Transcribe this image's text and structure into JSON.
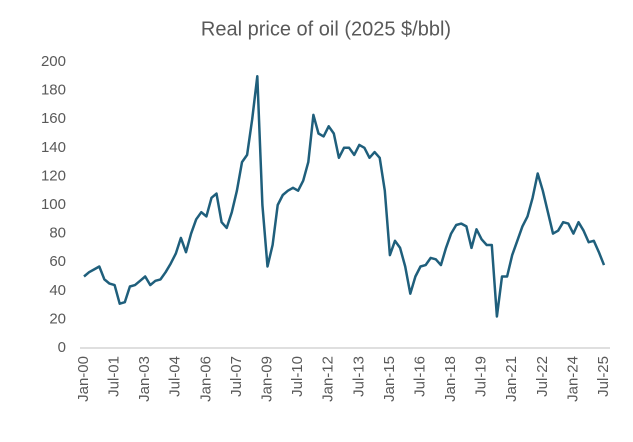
{
  "chart_data": {
    "type": "line",
    "title": "Real price of oil (2025 $/bbl)",
    "categories": [
      "Jan-00",
      null,
      null,
      null,
      null,
      null,
      "Jul-01",
      null,
      null,
      null,
      null,
      null,
      "Jan-03",
      null,
      null,
      null,
      null,
      null,
      "Jul-04",
      null,
      null,
      null,
      null,
      null,
      "Jan-06",
      null,
      null,
      null,
      null,
      null,
      "Jul-07",
      null,
      null,
      null,
      null,
      null,
      "Jan-09",
      null,
      null,
      null,
      null,
      null,
      "Jul-10",
      null,
      null,
      null,
      null,
      null,
      "Jan-12",
      null,
      null,
      null,
      null,
      null,
      "Jul-13",
      null,
      null,
      null,
      null,
      null,
      "Jan-15",
      null,
      null,
      null,
      null,
      null,
      "Jul-16",
      null,
      null,
      null,
      null,
      null,
      "Jan-18",
      null,
      null,
      null,
      null,
      null,
      "Jul-19",
      null,
      null,
      null,
      null,
      null,
      "Jan-21",
      null,
      null,
      null,
      null,
      null,
      "Jul-22",
      null,
      null,
      null,
      null,
      null,
      "Jan-24",
      null,
      null,
      null,
      null,
      null,
      "Jul-25"
    ],
    "values": [
      50,
      53,
      55,
      57,
      48,
      45,
      44,
      31,
      32,
      43,
      44,
      47,
      50,
      44,
      47,
      48,
      53,
      59,
      66,
      77,
      67,
      80,
      90,
      95,
      92,
      105,
      108,
      88,
      84,
      95,
      110,
      130,
      135,
      160,
      190,
      100,
      57,
      72,
      100,
      107,
      110,
      112,
      110,
      117,
      130,
      163,
      150,
      148,
      155,
      150,
      133,
      140,
      140,
      135,
      142,
      140,
      133,
      137,
      133,
      110,
      65,
      75,
      70,
      57,
      38,
      50,
      57,
      58,
      63,
      62,
      58,
      70,
      80,
      86,
      87,
      85,
      70,
      83,
      76,
      72,
      72,
      22,
      50,
      50,
      65,
      75,
      85,
      92,
      105,
      122,
      110,
      95,
      80,
      82,
      88,
      87,
      80,
      88,
      82,
      74,
      75,
      67,
      58
    ],
    "color": "#1f5f7c",
    "ylim": [
      0,
      200
    ],
    "yticks": [
      0,
      20,
      40,
      60,
      80,
      100,
      120,
      140,
      160,
      180,
      200
    ],
    "grid": false
  }
}
